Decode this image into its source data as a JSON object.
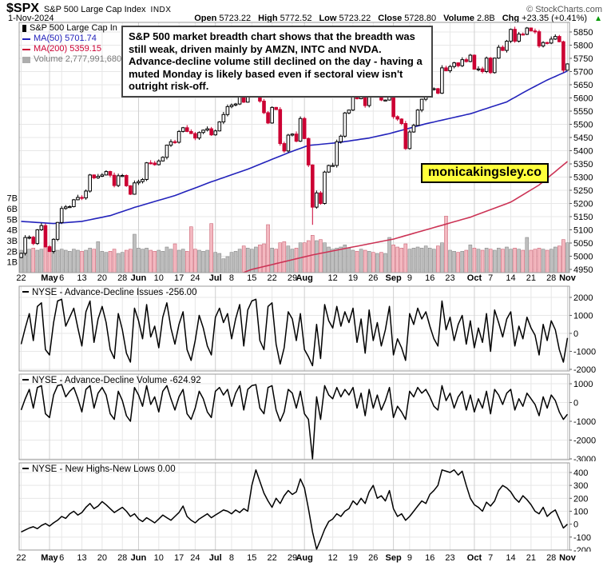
{
  "header": {
    "symbol": "$SPX",
    "name": "S&P 500 Large Cap Index",
    "exchange": "INDX",
    "source": "© StockCharts.com",
    "date": "1-Nov-2024",
    "stats": [
      {
        "label": "Open",
        "value": "5723.22"
      },
      {
        "label": "High",
        "value": "5772.52"
      },
      {
        "label": "Low",
        "value": "5723.22"
      },
      {
        "label": "Close",
        "value": "5728.80"
      },
      {
        "label": "Volume",
        "value": "2.8B"
      },
      {
        "label": "Chg",
        "value": "+23.35 (+0.41%)"
      }
    ],
    "up_arrow": "▲"
  },
  "legend": {
    "series": "S&P 500 Large Cap In",
    "ma50": "MA(50) 5701.74",
    "ma200": "MA(200) 5359.15",
    "volume": "Volume 2,777,991,680"
  },
  "annotation": "S&P 500 market breadth chart shows that the breadth was still weak, driven mainly by AMZN, INTC and NVDA. Advance-decline volume still declined on the day - having a muted Monday is likely based even if sectoral view isn't outright risk-off.",
  "badge": "monicakingsley.co",
  "colors": {
    "up_candle": "#ffffff",
    "down_candle": "#cc0033",
    "ma50": "#2222bb",
    "ma200": "#cc3355",
    "vol_up_fill": "#bfbfbf",
    "vol_up_stroke": "#8a8a8a",
    "vol_down_fill": "#f3b8c0",
    "vol_down_stroke": "#cc6677",
    "grid": "#e7e7e7",
    "grid_month": "#cfcfcf",
    "frame": "#999999",
    "green": "#009900",
    "badge_bg": "#ffff3b"
  },
  "chart_data": {
    "type": "candlestick",
    "title": "$SPX daily candlesticks with MA(50), MA(200), volume overlay and NYSE breadth panels",
    "x_ticks": [
      {
        "label": "22",
        "i": 0
      },
      {
        "label": "May",
        "i": 7,
        "b": 1
      },
      {
        "label": "6",
        "i": 10
      },
      {
        "label": "13",
        "i": 15
      },
      {
        "label": "20",
        "i": 20
      },
      {
        "label": "28",
        "i": 25
      },
      {
        "label": "Jun",
        "i": 29,
        "b": 1
      },
      {
        "label": "10",
        "i": 34
      },
      {
        "label": "17",
        "i": 39
      },
      {
        "label": "24",
        "i": 43
      },
      {
        "label": "Jul",
        "i": 48,
        "b": 1
      },
      {
        "label": "8",
        "i": 52
      },
      {
        "label": "15",
        "i": 57
      },
      {
        "label": "22",
        "i": 62
      },
      {
        "label": "29",
        "i": 67
      },
      {
        "label": "Aug",
        "i": 70,
        "b": 1
      },
      {
        "label": "12",
        "i": 77
      },
      {
        "label": "19",
        "i": 82
      },
      {
        "label": "26",
        "i": 87
      },
      {
        "label": "Sep",
        "i": 92,
        "b": 1
      },
      {
        "label": "9",
        "i": 96
      },
      {
        "label": "16",
        "i": 101
      },
      {
        "label": "23",
        "i": 106
      },
      {
        "label": "Oct",
        "i": 112,
        "b": 1
      },
      {
        "label": "7",
        "i": 116
      },
      {
        "label": "14",
        "i": 121
      },
      {
        "label": "21",
        "i": 126
      },
      {
        "label": "28",
        "i": 131
      },
      {
        "label": "Nov",
        "i": 135,
        "b": 1
      }
    ],
    "price_axis": {
      "ticks": [
        5850,
        5800,
        5750,
        5700,
        5650,
        5600,
        5550,
        5500,
        5450,
        5400,
        5350,
        5300,
        5250,
        5200,
        5150,
        5100,
        5050,
        5000,
        4950
      ]
    },
    "volume_axis": {
      "ticks": [
        {
          "v": 7,
          "label": "7B"
        },
        {
          "v": 6,
          "label": "6B"
        },
        {
          "v": 5,
          "label": "5B"
        },
        {
          "v": 4,
          "label": "4B"
        },
        {
          "v": 3,
          "label": "3B"
        },
        {
          "v": 2,
          "label": "2B"
        },
        {
          "v": 1,
          "label": "1B"
        }
      ]
    },
    "closes": [
      5011,
      5071,
      5072,
      5048,
      5100,
      5116,
      5036,
      5018,
      5064,
      5128,
      5181,
      5187,
      5188,
      5214,
      5223,
      5221,
      5247,
      5308,
      5297,
      5303,
      5308,
      5321,
      5307,
      5268,
      5305,
      5306,
      5267,
      5235,
      5278,
      5283,
      5291,
      5354,
      5353,
      5347,
      5361,
      5375,
      5421,
      5434,
      5432,
      5473,
      5487,
      5473,
      5465,
      5448,
      5469,
      5478,
      5483,
      5460,
      5475,
      5509,
      5537,
      5567,
      5573,
      5577,
      5634,
      5584,
      5615,
      5631,
      5667,
      5588,
      5544,
      5505,
      5564,
      5556,
      5427,
      5399,
      5459,
      5463,
      5436,
      5522,
      5446,
      5346,
      5186,
      5240,
      5200,
      5319,
      5344,
      5344,
      5434,
      5455,
      5543,
      5554,
      5608,
      5597,
      5620,
      5571,
      5635,
      5617,
      5626,
      5592,
      5592,
      5648,
      5529,
      5520,
      5503,
      5408,
      5471,
      5496,
      5554,
      5595,
      5626,
      5633,
      5635,
      5618,
      5714,
      5703,
      5719,
      5733,
      5722,
      5745,
      5738,
      5762,
      5709,
      5710,
      5700,
      5751,
      5696,
      5751,
      5792,
      5780,
      5815,
      5860,
      5815,
      5842,
      5841,
      5865,
      5854,
      5851,
      5797,
      5810,
      5808,
      5823,
      5833,
      5813,
      5705,
      5729
    ],
    "lows_override": {
      "72": 5119,
      "135": 5723
    },
    "volumes": [
      2.1,
      2.0,
      2.2,
      2.3,
      2.1,
      2.2,
      2.4,
      2.3,
      2.2,
      2.1,
      2.2,
      2.1,
      2.0,
      2.2,
      2.1,
      2.0,
      2.1,
      2.3,
      2.2,
      2.9,
      2.0,
      1.9,
      2.0,
      2.2,
      1.8,
      1.9,
      2.1,
      2.2,
      3.6,
      2.3,
      2.2,
      2.3,
      2.1,
      2.0,
      2.1,
      2.0,
      2.4,
      2.2,
      2.7,
      2.1,
      2.2,
      2.0,
      4.3,
      2.2,
      2.1,
      2.0,
      2.1,
      4.6,
      1.9,
      1.8,
      1.3,
      1.5,
      1.9,
      2.0,
      2.2,
      2.5,
      2.3,
      2.2,
      2.4,
      2.6,
      2.7,
      4.5,
      2.3,
      2.2,
      2.8,
      2.9,
      2.5,
      2.2,
      2.3,
      2.8,
      2.8,
      3.0,
      3.5,
      3.0,
      3.1,
      2.8,
      2.4,
      2.2,
      2.3,
      2.4,
      2.6,
      2.3,
      2.1,
      2.0,
      2.2,
      2.1,
      2.0,
      1.9,
      1.8,
      1.9,
      1.8,
      3.3,
      2.6,
      2.4,
      2.3,
      2.7,
      2.2,
      2.3,
      2.4,
      2.3,
      2.5,
      2.3,
      2.2,
      2.5,
      2.8,
      5.3,
      2.1,
      2.0,
      1.9,
      2.0,
      2.1,
      2.6,
      2.3,
      2.2,
      2.1,
      2.3,
      2.2,
      2.1,
      2.3,
      2.2,
      2.4,
      2.2,
      2.3,
      2.2,
      2.1,
      3.3,
      2.1,
      2.2,
      2.3,
      2.2,
      2.1,
      2.2,
      2.4,
      2.5,
      3.1,
      2.8
    ],
    "ma50_anchors": [
      [
        0,
        5132
      ],
      [
        8,
        5124
      ],
      [
        15,
        5132
      ],
      [
        22,
        5154
      ],
      [
        28,
        5185
      ],
      [
        38,
        5230
      ],
      [
        47,
        5282
      ],
      [
        56,
        5330
      ],
      [
        66,
        5392
      ],
      [
        71,
        5420
      ],
      [
        78,
        5430
      ],
      [
        86,
        5448
      ],
      [
        91,
        5465
      ],
      [
        100,
        5502
      ],
      [
        111,
        5540
      ],
      [
        120,
        5585
      ],
      [
        125,
        5628
      ],
      [
        130,
        5668
      ],
      [
        135,
        5702
      ]
    ],
    "ma200_anchors": [
      [
        0,
        4735
      ],
      [
        20,
        4790
      ],
      [
        40,
        4850
      ],
      [
        57,
        4950
      ],
      [
        72,
        5005
      ],
      [
        92,
        5065
      ],
      [
        111,
        5148
      ],
      [
        121,
        5205
      ],
      [
        128,
        5270
      ],
      [
        135,
        5359
      ]
    ],
    "panels": [
      {
        "title": "NYSE - Advance-Decline Issues",
        "last": "-256.00",
        "yticks": [
          2000,
          1000,
          0,
          -1000,
          -2000
        ],
        "values": [
          -600,
          300,
          1100,
          -400,
          1500,
          1700,
          -900,
          -1200,
          600,
          1800,
          1900,
          400,
          900,
          1400,
          300,
          -700,
          1200,
          1800,
          -500,
          800,
          1500,
          600,
          -900,
          -1400,
          1100,
          200,
          -1100,
          -1600,
          1400,
          700,
          -300,
          1600,
          -200,
          400,
          -800,
          900,
          1700,
          300,
          -600,
          500,
          1200,
          -900,
          -1500,
          -400,
          1000,
          300,
          -700,
          -1200,
          900,
          1400,
          600,
          1100,
          -300,
          800,
          1600,
          -700,
          1300,
          1800,
          1900,
          -400,
          -900,
          1500,
          1700,
          -600,
          -1700,
          -800,
          1200,
          800,
          -400,
          1100,
          -900,
          -1300,
          -1800,
          500,
          -1400,
          1600,
          700,
          300,
          1500,
          400,
          1200,
          600,
          1400,
          -500,
          800,
          -1100,
          1300,
          -400,
          600,
          -700,
          200,
          1500,
          -1200,
          -300,
          -800,
          -1500,
          1100,
          500,
          1400,
          800,
          1200,
          400,
          -300,
          -700,
          1800,
          200,
          900,
          -400,
          500,
          1000,
          -600,
          700,
          -800,
          300,
          -500,
          1100,
          -1000,
          1300,
          600,
          -200,
          800,
          1200,
          -700,
          400,
          -300,
          900,
          300,
          -100,
          -1200,
          500,
          -400,
          700,
          200,
          -900,
          -1600,
          -256
        ]
      },
      {
        "title": "NYSE - Advance-Decline Volume",
        "last": "-624.92",
        "yticks": [
          1000,
          0,
          -1000,
          -2000,
          -3000
        ],
        "values": [
          -400,
          200,
          700,
          -300,
          800,
          900,
          -600,
          -800,
          400,
          900,
          950,
          300,
          600,
          800,
          200,
          -500,
          700,
          900,
          -300,
          500,
          800,
          400,
          -600,
          -900,
          600,
          100,
          -700,
          -1000,
          800,
          400,
          -200,
          900,
          -100,
          300,
          -500,
          600,
          900,
          200,
          -400,
          300,
          700,
          -600,
          -900,
          -300,
          600,
          200,
          -500,
          -800,
          600,
          800,
          400,
          700,
          -200,
          500,
          900,
          -400,
          700,
          900,
          950,
          -300,
          -600,
          800,
          900,
          -400,
          -1000,
          -500,
          700,
          500,
          -300,
          600,
          -600,
          -900,
          -3800,
          300,
          -900,
          900,
          400,
          200,
          800,
          300,
          700,
          400,
          800,
          -300,
          500,
          -700,
          700,
          -300,
          400,
          -400,
          100,
          800,
          -800,
          -200,
          -500,
          -900,
          600,
          300,
          800,
          500,
          700,
          300,
          -200,
          -400,
          900,
          100,
          500,
          -300,
          300,
          600,
          -400,
          400,
          -500,
          200,
          -300,
          600,
          -600,
          700,
          400,
          -100,
          500,
          700,
          -400,
          200,
          -200,
          500,
          200,
          -100,
          -700,
          300,
          -300,
          400,
          100,
          -500,
          -900,
          -625
        ]
      },
      {
        "title": "NYSE - New Highs-New Lows",
        "last": "0.00",
        "yticks": [
          400,
          300,
          200,
          100,
          0,
          -100,
          -200
        ],
        "values": [
          -60,
          -45,
          -30,
          -20,
          -35,
          -10,
          5,
          -15,
          10,
          30,
          60,
          45,
          80,
          100,
          70,
          90,
          130,
          160,
          120,
          140,
          175,
          150,
          120,
          90,
          110,
          130,
          100,
          60,
          80,
          40,
          20,
          50,
          30,
          10,
          40,
          70,
          50,
          30,
          60,
          90,
          140,
          60,
          30,
          10,
          40,
          60,
          80,
          50,
          70,
          90,
          110,
          100,
          80,
          110,
          90,
          120,
          100,
          300,
          420,
          330,
          240,
          180,
          130,
          200,
          160,
          220,
          260,
          230,
          250,
          350,
          280,
          120,
          -60,
          -255,
          -120,
          -40,
          20,
          40,
          80,
          60,
          100,
          120,
          180,
          150,
          200,
          160,
          250,
          300,
          200,
          220,
          180,
          260,
          120,
          60,
          80,
          30,
          60,
          100,
          140,
          180,
          160,
          230,
          260,
          300,
          420,
          410,
          400,
          420,
          380,
          410,
          300,
          200,
          150,
          130,
          100,
          170,
          140,
          180,
          260,
          300,
          280,
          250,
          200,
          170,
          220,
          190,
          150,
          100,
          80,
          130,
          60,
          90,
          110,
          40,
          -30,
          0
        ]
      }
    ]
  }
}
